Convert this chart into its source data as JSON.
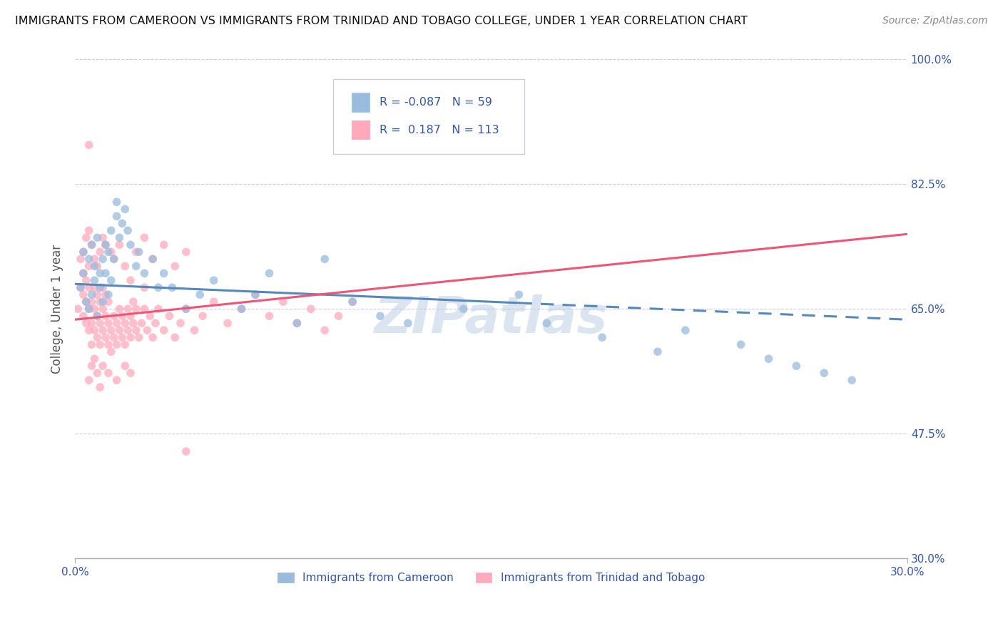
{
  "title": "IMMIGRANTS FROM CAMEROON VS IMMIGRANTS FROM TRINIDAD AND TOBAGO COLLEGE, UNDER 1 YEAR CORRELATION CHART",
  "source": "Source: ZipAtlas.com",
  "ylabel": "College, Under 1 year",
  "legend_label1": "Immigrants from Cameroon",
  "legend_label2": "Immigrants from Trinidad and Tobago",
  "R1": -0.087,
  "N1": 59,
  "R2": 0.187,
  "N2": 113,
  "color1": "#99bbdd",
  "color2": "#ffaabb",
  "trend_color1": "#5588bb",
  "trend_color2": "#ee5577",
  "xmin": 0.0,
  "xmax": 0.3,
  "ymin": 0.3,
  "ymax": 1.0,
  "yticks": [
    0.3,
    0.475,
    0.65,
    0.825,
    1.0
  ],
  "ytick_labels": [
    "30.0%",
    "47.5%",
    "65.0%",
    "82.5%",
    "100.0%"
  ],
  "xtick_positions": [
    0.0,
    0.3
  ],
  "xtick_labels": [
    "0.0%",
    "30.0%"
  ],
  "background_color": "#ffffff",
  "grid_color": "#aaaacc",
  "watermark": "ZIPatlas",
  "scatter1_x": [
    0.002,
    0.003,
    0.003,
    0.004,
    0.005,
    0.005,
    0.006,
    0.006,
    0.007,
    0.007,
    0.008,
    0.008,
    0.009,
    0.009,
    0.01,
    0.01,
    0.011,
    0.011,
    0.012,
    0.012,
    0.013,
    0.013,
    0.014,
    0.015,
    0.015,
    0.016,
    0.017,
    0.018,
    0.019,
    0.02,
    0.022,
    0.023,
    0.025,
    0.028,
    0.03,
    0.032,
    0.035,
    0.04,
    0.045,
    0.05,
    0.06,
    0.065,
    0.07,
    0.08,
    0.09,
    0.1,
    0.11,
    0.12,
    0.14,
    0.16,
    0.17,
    0.19,
    0.21,
    0.22,
    0.24,
    0.25,
    0.26,
    0.27,
    0.28
  ],
  "scatter1_y": [
    0.68,
    0.7,
    0.73,
    0.66,
    0.72,
    0.65,
    0.74,
    0.67,
    0.71,
    0.69,
    0.75,
    0.64,
    0.7,
    0.68,
    0.72,
    0.66,
    0.74,
    0.7,
    0.73,
    0.67,
    0.76,
    0.69,
    0.72,
    0.8,
    0.78,
    0.75,
    0.77,
    0.79,
    0.76,
    0.74,
    0.71,
    0.73,
    0.7,
    0.72,
    0.68,
    0.7,
    0.68,
    0.65,
    0.67,
    0.69,
    0.65,
    0.67,
    0.7,
    0.63,
    0.72,
    0.66,
    0.64,
    0.63,
    0.65,
    0.67,
    0.63,
    0.61,
    0.59,
    0.62,
    0.6,
    0.58,
    0.57,
    0.56,
    0.55
  ],
  "scatter2_x": [
    0.001,
    0.002,
    0.002,
    0.003,
    0.003,
    0.003,
    0.004,
    0.004,
    0.004,
    0.005,
    0.005,
    0.005,
    0.005,
    0.006,
    0.006,
    0.006,
    0.007,
    0.007,
    0.007,
    0.008,
    0.008,
    0.008,
    0.009,
    0.009,
    0.009,
    0.01,
    0.01,
    0.01,
    0.011,
    0.011,
    0.011,
    0.012,
    0.012,
    0.012,
    0.013,
    0.013,
    0.014,
    0.014,
    0.015,
    0.015,
    0.016,
    0.016,
    0.017,
    0.017,
    0.018,
    0.018,
    0.019,
    0.019,
    0.02,
    0.02,
    0.021,
    0.021,
    0.022,
    0.022,
    0.023,
    0.024,
    0.025,
    0.026,
    0.027,
    0.028,
    0.029,
    0.03,
    0.032,
    0.034,
    0.036,
    0.038,
    0.04,
    0.043,
    0.046,
    0.05,
    0.055,
    0.06,
    0.065,
    0.07,
    0.075,
    0.08,
    0.085,
    0.09,
    0.095,
    0.1,
    0.005,
    0.006,
    0.007,
    0.008,
    0.009,
    0.01,
    0.012,
    0.015,
    0.018,
    0.02,
    0.003,
    0.004,
    0.005,
    0.006,
    0.007,
    0.008,
    0.009,
    0.01,
    0.011,
    0.013,
    0.014,
    0.016,
    0.018,
    0.022,
    0.025,
    0.028,
    0.032,
    0.036,
    0.04,
    0.02,
    0.025,
    0.005,
    0.04
  ],
  "scatter2_y": [
    0.65,
    0.68,
    0.72,
    0.64,
    0.67,
    0.7,
    0.63,
    0.66,
    0.69,
    0.62,
    0.65,
    0.68,
    0.71,
    0.6,
    0.63,
    0.66,
    0.62,
    0.65,
    0.68,
    0.61,
    0.64,
    0.67,
    0.6,
    0.63,
    0.66,
    0.62,
    0.65,
    0.68,
    0.61,
    0.64,
    0.67,
    0.6,
    0.63,
    0.66,
    0.59,
    0.62,
    0.61,
    0.64,
    0.6,
    0.63,
    0.62,
    0.65,
    0.61,
    0.64,
    0.6,
    0.63,
    0.62,
    0.65,
    0.61,
    0.64,
    0.63,
    0.66,
    0.62,
    0.65,
    0.61,
    0.63,
    0.65,
    0.62,
    0.64,
    0.61,
    0.63,
    0.65,
    0.62,
    0.64,
    0.61,
    0.63,
    0.65,
    0.62,
    0.64,
    0.66,
    0.63,
    0.65,
    0.67,
    0.64,
    0.66,
    0.63,
    0.65,
    0.62,
    0.64,
    0.66,
    0.55,
    0.57,
    0.58,
    0.56,
    0.54,
    0.57,
    0.56,
    0.55,
    0.57,
    0.56,
    0.73,
    0.75,
    0.76,
    0.74,
    0.72,
    0.71,
    0.73,
    0.75,
    0.74,
    0.73,
    0.72,
    0.74,
    0.71,
    0.73,
    0.75,
    0.72,
    0.74,
    0.71,
    0.73,
    0.69,
    0.68,
    0.88,
    0.45
  ],
  "trend1_x0": 0.0,
  "trend1_y0": 0.685,
  "trend1_x1": 0.3,
  "trend1_y1": 0.635,
  "trend2_x0": 0.0,
  "trend2_y0": 0.635,
  "trend2_x1": 0.3,
  "trend2_y1": 0.755
}
